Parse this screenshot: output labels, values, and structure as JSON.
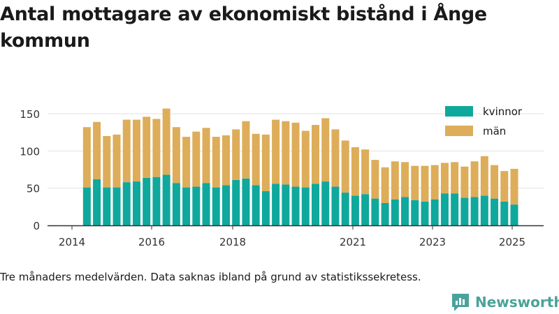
{
  "title": "Antal mottagare av ekonomiskt bistånd i Ånge kommun",
  "footnote": "Tre månaders medelvärden. Data saknas ibland på grund av statistikssekretess.",
  "brand": {
    "name": "Newsworthy"
  },
  "colors": {
    "kvinnor": "#0fa89c",
    "man": "#ddad5a",
    "axis": "#333333",
    "grid": "#e0e0e0",
    "brand": "#4aa39a"
  },
  "chart_data": {
    "type": "bar",
    "stacked": true,
    "x_ticks": [
      "2014",
      "2016",
      "2018",
      "2021",
      "2023",
      "2025"
    ],
    "y_ticks": [
      "0",
      "50",
      "100",
      "150"
    ],
    "ylim": [
      0,
      165
    ],
    "legend_position": "top-right",
    "categories": [
      "2014-Q2",
      "2014-Q3",
      "2014-Q4",
      "2015-Q1",
      "2015-Q2",
      "2015-Q3",
      "2015-Q4",
      "2016-Q1",
      "2016-Q2",
      "2016-Q3",
      "2016-Q4",
      "2017-Q1",
      "2017-Q2",
      "2017-Q3",
      "2017-Q4",
      "2018-Q1",
      "2018-Q2",
      "2018-Q3",
      "2018-Q4",
      "2019-Q1",
      "2019-Q2",
      "2019-Q3",
      "2019-Q4",
      "2020-Q1",
      "2020-Q2",
      "2020-Q3",
      "2020-Q4",
      "2021-Q1",
      "2021-Q2",
      "2021-Q3",
      "2021-Q4",
      "2022-Q1",
      "2022-Q2",
      "2022-Q3",
      "2022-Q4",
      "2023-Q1",
      "2023-Q2",
      "2023-Q3",
      "2023-Q4",
      "2024-Q1",
      "2024-Q2",
      "2024-Q3",
      "2024-Q4",
      "2025-Q1",
      "2025-Q2"
    ],
    "series": [
      {
        "name": "kvinnor",
        "values": [
          51,
          62,
          51,
          51,
          58,
          59,
          64,
          65,
          68,
          57,
          51,
          52,
          57,
          51,
          54,
          61,
          63,
          54,
          46,
          56,
          55,
          52,
          51,
          56,
          59,
          52,
          44,
          40,
          42,
          36,
          30,
          35,
          38,
          34,
          32,
          35,
          43,
          43,
          37,
          38,
          40,
          36,
          32,
          28,
          0
        ]
      },
      {
        "name": "män",
        "values": [
          81,
          77,
          69,
          71,
          84,
          83,
          82,
          78,
          89,
          75,
          68,
          74,
          74,
          68,
          67,
          68,
          77,
          69,
          76,
          86,
          85,
          86,
          76,
          79,
          85,
          77,
          70,
          65,
          60,
          52,
          48,
          51,
          47,
          46,
          48,
          46,
          41,
          42,
          42,
          48,
          53,
          45,
          41,
          48,
          0
        ]
      }
    ]
  }
}
